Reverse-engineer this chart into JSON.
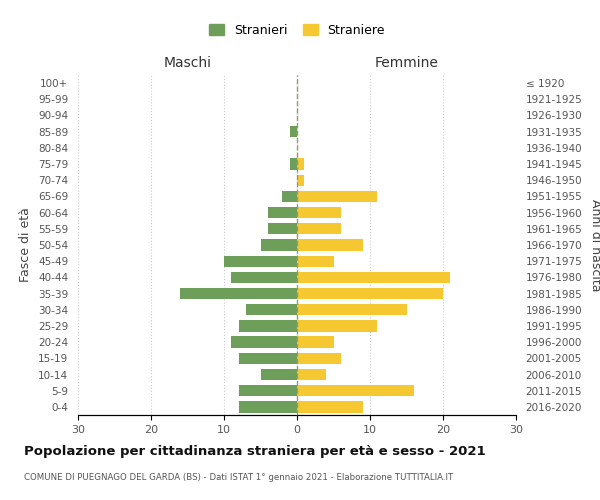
{
  "age_groups": [
    "0-4",
    "5-9",
    "10-14",
    "15-19",
    "20-24",
    "25-29",
    "30-34",
    "35-39",
    "40-44",
    "45-49",
    "50-54",
    "55-59",
    "60-64",
    "65-69",
    "70-74",
    "75-79",
    "80-84",
    "85-89",
    "90-94",
    "95-99",
    "100+"
  ],
  "birth_years": [
    "2016-2020",
    "2011-2015",
    "2006-2010",
    "2001-2005",
    "1996-2000",
    "1991-1995",
    "1986-1990",
    "1981-1985",
    "1976-1980",
    "1971-1975",
    "1966-1970",
    "1961-1965",
    "1956-1960",
    "1951-1955",
    "1946-1950",
    "1941-1945",
    "1936-1940",
    "1931-1935",
    "1926-1930",
    "1921-1925",
    "≤ 1920"
  ],
  "males": [
    8,
    8,
    5,
    8,
    9,
    8,
    7,
    16,
    9,
    10,
    5,
    4,
    4,
    2,
    0,
    1,
    0,
    1,
    0,
    0,
    0
  ],
  "females": [
    9,
    16,
    4,
    6,
    5,
    11,
    15,
    20,
    21,
    5,
    9,
    6,
    6,
    11,
    1,
    1,
    0,
    0,
    0,
    0,
    0
  ],
  "male_color": "#6d9e5a",
  "female_color": "#f5c832",
  "title": "Popolazione per cittadinanza straniera per età e sesso - 2021",
  "subtitle": "COMUNE DI PUEGNAGO DEL GARDA (BS) - Dati ISTAT 1° gennaio 2021 - Elaborazione TUTTITALIA.IT",
  "xlabel_left": "Maschi",
  "xlabel_right": "Femmine",
  "ylabel_left": "Fasce di età",
  "ylabel_right": "Anni di nascita",
  "legend_male": "Stranieri",
  "legend_female": "Straniere",
  "xlim": 30,
  "background_color": "#ffffff",
  "grid_color": "#cccccc"
}
